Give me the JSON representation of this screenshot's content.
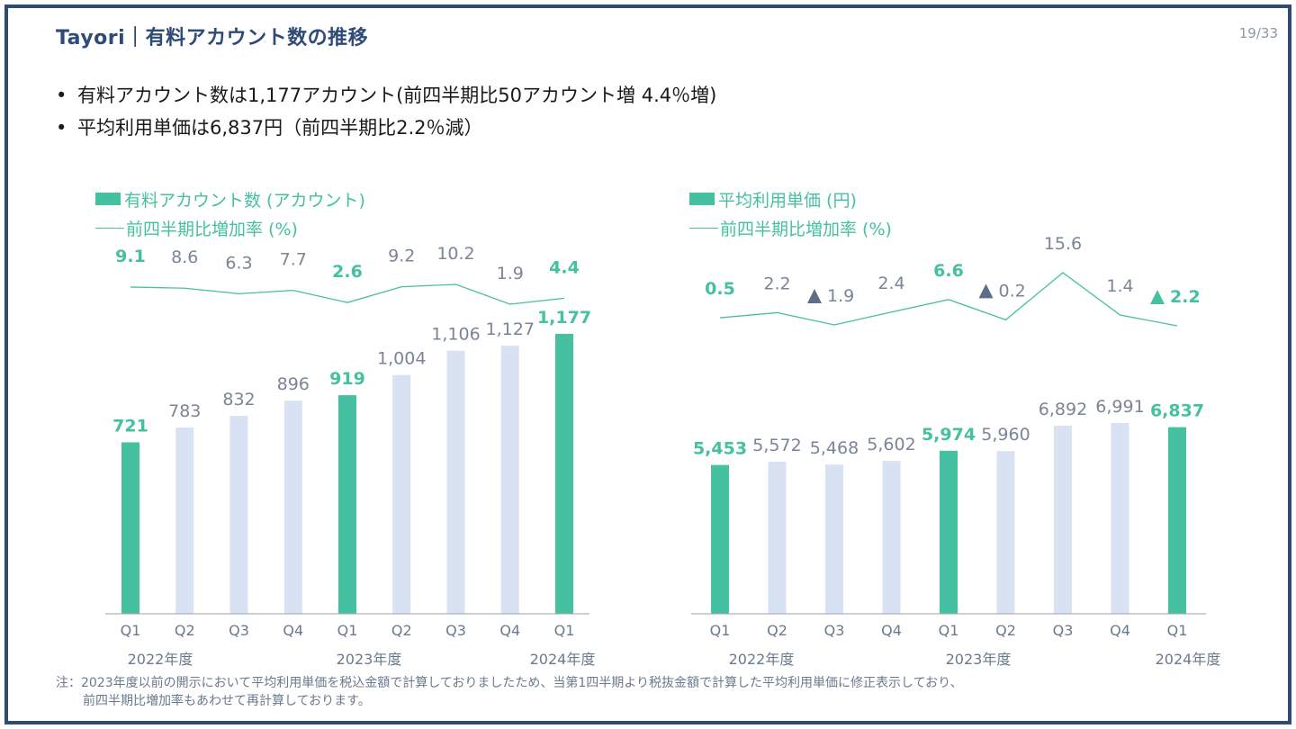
{
  "header": {
    "title": "Tayori｜有料アカウント数の推移",
    "page": "19/33"
  },
  "bullets": [
    "有料アカウント数は1,177アカウント(前四半期比50アカウント増 4.4％増)",
    "平均利用単価は6,837円（前四半期比2.2％減）"
  ],
  "colors": {
    "highlight": "#45c0a0",
    "normal_bar": "#d9e2f2",
    "label": "#7a8597",
    "frame": "#2e4b78"
  },
  "chart_data": [
    {
      "type": "bar",
      "title": "有料アカウント数 (アカウント)",
      "line_legend": "前四半期比増加率 (%)",
      "categories": [
        "Q1",
        "Q2",
        "Q3",
        "Q4",
        "Q1",
        "Q2",
        "Q3",
        "Q4",
        "Q1"
      ],
      "fiscal_years": [
        "2022年度",
        "2023年度",
        "2024年度"
      ],
      "values": [
        721,
        783,
        832,
        896,
        919,
        1004,
        1106,
        1127,
        1177
      ],
      "value_labels": [
        "721",
        "783",
        "832",
        "896",
        "919",
        "1,004",
        "1,106",
        "1,127",
        "1,177"
      ],
      "highlight": [
        true,
        false,
        false,
        false,
        true,
        false,
        false,
        false,
        true
      ],
      "growth_rate": [
        9.1,
        8.6,
        6.3,
        7.7,
        2.6,
        9.2,
        10.2,
        1.9,
        4.4
      ],
      "growth_labels": [
        "9.1",
        "8.6",
        "6.3",
        "7.7",
        "2.6",
        "9.2",
        "10.2",
        "1.9",
        "4.4"
      ],
      "ylim": [
        0,
        1400
      ]
    },
    {
      "type": "bar",
      "title": "平均利用単価 (円)",
      "line_legend": "前四半期比増加率 (%)",
      "categories": [
        "Q1",
        "Q2",
        "Q3",
        "Q4",
        "Q1",
        "Q2",
        "Q3",
        "Q4",
        "Q1"
      ],
      "fiscal_years": [
        "2022年度",
        "2023年度",
        "2024年度"
      ],
      "values": [
        5453,
        5572,
        5468,
        5602,
        5974,
        5960,
        6892,
        6991,
        6837
      ],
      "value_labels": [
        "5,453",
        "5,572",
        "5,468",
        "5,602",
        "5,974",
        "5,960",
        "6,892",
        "6,991",
        "6,837"
      ],
      "highlight": [
        true,
        false,
        false,
        false,
        true,
        false,
        false,
        false,
        true
      ],
      "growth_rate": [
        0.5,
        2.2,
        -1.9,
        2.4,
        6.6,
        -0.2,
        15.6,
        1.4,
        -2.2
      ],
      "growth_labels": [
        "0.5",
        "2.2",
        "▲ 1.9",
        "2.4",
        "6.6",
        "▲ 0.2",
        "15.6",
        "1.4",
        "▲ 2.2"
      ],
      "ylim": [
        0,
        12200
      ]
    }
  ],
  "footnote": {
    "line1": "注：2023年度以前の開示において平均利用単価を税込金額で計算しておりましたため、当第1四半期より税抜金額で計算した平均利用単価に修正表示しており、",
    "line2": "前四半期比増加率もあわせて再計算しております。"
  }
}
